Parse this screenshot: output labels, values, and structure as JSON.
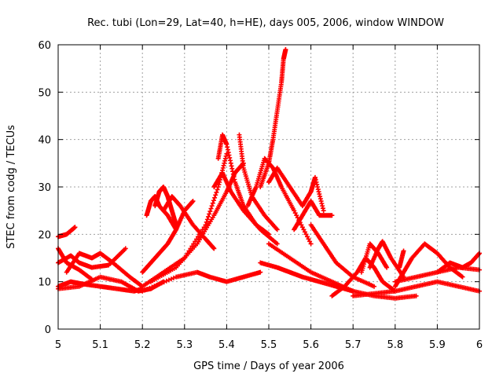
{
  "chart_data": {
    "type": "scatter",
    "title": "Rec. tubi (Lon=29, Lat=40, h=HE), days 005, 2006, window WINDOW",
    "xlabel": "GPS time / Days of year 2006",
    "ylabel": "STEC from codg / TECUs",
    "xlim": [
      5,
      6
    ],
    "ylim": [
      0,
      60
    ],
    "xticks": [
      "5",
      "5.1",
      "5.2",
      "5.3",
      "5.4",
      "5.5",
      "5.6",
      "5.7",
      "5.8",
      "5.9",
      "6"
    ],
    "yticks": [
      "0",
      "10",
      "20",
      "30",
      "40",
      "50",
      "60"
    ],
    "grid": true,
    "marker": "+",
    "color": "#ff0000",
    "series": [
      {
        "x": [
          5.0,
          5.03,
          5.06,
          5.1,
          5.14,
          5.18,
          5.2
        ],
        "y": [
          9,
          10,
          9.5,
          9,
          8.5,
          8,
          8.5
        ]
      },
      {
        "x": [
          5.0,
          5.02,
          5.04
        ],
        "y": [
          19.5,
          20,
          21.5
        ]
      },
      {
        "x": [
          5.0,
          5.02,
          5.05,
          5.08
        ],
        "y": [
          17,
          14,
          12.5,
          10.5
        ]
      },
      {
        "x": [
          5.0,
          5.03,
          5.05,
          5.08,
          5.12,
          5.16
        ],
        "y": [
          14,
          15.5,
          14,
          13,
          13.5,
          17
        ]
      },
      {
        "x": [
          5.02,
          5.05,
          5.08,
          5.1,
          5.13,
          5.17,
          5.2
        ],
        "y": [
          12,
          16,
          15,
          16,
          14,
          11,
          9
        ]
      },
      {
        "x": [
          5.0,
          5.05,
          5.1,
          5.15,
          5.19,
          5.22,
          5.25
        ],
        "y": [
          8.5,
          9,
          11,
          10,
          8,
          8.5,
          10
        ]
      },
      {
        "x": [
          5.2,
          5.22,
          5.24,
          5.26,
          5.28,
          5.3,
          5.32
        ],
        "y": [
          12,
          14,
          16,
          18,
          21,
          25,
          27
        ]
      },
      {
        "x": [
          5.21,
          5.22,
          5.23,
          5.24,
          5.26,
          5.28
        ],
        "y": [
          24,
          27,
          28,
          26,
          24,
          21
        ]
      },
      {
        "x": [
          5.23,
          5.24,
          5.25,
          5.26,
          5.27,
          5.28
        ],
        "y": [
          26,
          29,
          30,
          28,
          25,
          22
        ]
      },
      {
        "x": [
          5.25,
          5.27,
          5.29,
          5.32,
          5.35,
          5.37
        ],
        "y": [
          25,
          28,
          26,
          22,
          19,
          17
        ]
      },
      {
        "x": [
          5.2,
          5.25,
          5.3,
          5.35,
          5.38,
          5.4
        ],
        "y": [
          9,
          12,
          15,
          22,
          30,
          37
        ]
      },
      {
        "x": [
          5.38,
          5.39,
          5.4,
          5.42,
          5.44,
          5.47,
          5.5
        ],
        "y": [
          36,
          41,
          39,
          31,
          26,
          22,
          20
        ]
      },
      {
        "x": [
          5.37,
          5.39,
          5.41,
          5.44,
          5.48,
          5.52
        ],
        "y": [
          30,
          33,
          29,
          25,
          21,
          18
        ]
      },
      {
        "x": [
          5.22,
          5.28,
          5.33,
          5.37,
          5.4,
          5.42,
          5.44
        ],
        "y": [
          10,
          13,
          18,
          24,
          29,
          33,
          35
        ]
      },
      {
        "x": [
          5.43,
          5.44,
          5.46,
          5.49,
          5.52
        ],
        "y": [
          41,
          34,
          28,
          24,
          21
        ]
      },
      {
        "x": [
          5.48,
          5.5,
          5.51,
          5.52,
          5.53,
          5.535,
          5.54
        ],
        "y": [
          30,
          35,
          40,
          46,
          52,
          57,
          59
        ]
      },
      {
        "x": [
          5.45,
          5.47,
          5.49,
          5.51,
          5.53,
          5.56,
          5.6
        ],
        "y": [
          26,
          30,
          36,
          34,
          30,
          25,
          18
        ]
      },
      {
        "x": [
          5.5,
          5.52,
          5.55,
          5.58,
          5.6,
          5.61,
          5.63
        ],
        "y": [
          31,
          34,
          30,
          26,
          29,
          32,
          25
        ]
      },
      {
        "x": [
          5.56,
          5.58,
          5.6,
          5.62,
          5.65
        ],
        "y": [
          21,
          24,
          27,
          24,
          24
        ]
      },
      {
        "x": [
          5.6,
          5.63,
          5.66,
          5.7,
          5.75
        ],
        "y": [
          22,
          18,
          14,
          11,
          9
        ]
      },
      {
        "x": [
          5.2,
          5.28,
          5.33,
          5.36,
          5.4,
          5.44,
          5.48
        ],
        "y": [
          8,
          11,
          12,
          11,
          10,
          11,
          12
        ]
      },
      {
        "x": [
          5.48,
          5.52,
          5.55,
          5.58,
          5.62,
          5.66,
          5.7
        ],
        "y": [
          14,
          13,
          12,
          11,
          10,
          9,
          8
        ]
      },
      {
        "x": [
          5.5,
          5.55,
          5.6,
          5.65,
          5.7,
          5.75,
          5.8,
          5.85
        ],
        "y": [
          18,
          15,
          12,
          10,
          8,
          7,
          6.5,
          7
        ]
      },
      {
        "x": [
          5.65,
          5.68,
          5.71,
          5.73,
          5.75,
          5.77,
          5.8
        ],
        "y": [
          7,
          9,
          12,
          15,
          13,
          10,
          8
        ]
      },
      {
        "x": [
          5.72,
          5.74,
          5.76,
          5.78
        ],
        "y": [
          12,
          18,
          16,
          13
        ]
      },
      {
        "x": [
          5.74,
          5.76,
          5.77,
          5.79,
          5.82
        ],
        "y": [
          13,
          17,
          18.5,
          15,
          11
        ]
      },
      {
        "x": [
          5.8,
          5.82,
          5.84,
          5.87,
          5.9,
          5.93,
          5.96
        ],
        "y": [
          9,
          12,
          15,
          18,
          16,
          13,
          11
        ]
      },
      {
        "x": [
          5.9,
          5.93,
          5.96,
          5.98,
          6.0
        ],
        "y": [
          12,
          14,
          13,
          14,
          16
        ]
      },
      {
        "x": [
          5.7,
          5.75,
          5.8,
          5.85,
          5.9,
          5.95,
          6.0
        ],
        "y": [
          7,
          7.5,
          8,
          9,
          10,
          9,
          8
        ]
      },
      {
        "x": [
          5.8,
          5.85,
          5.9,
          5.95,
          6.0
        ],
        "y": [
          10,
          11,
          12,
          13,
          12.5
        ]
      },
      {
        "x": [
          5.81,
          5.82
        ],
        "y": [
          13,
          16.5
        ]
      }
    ]
  }
}
